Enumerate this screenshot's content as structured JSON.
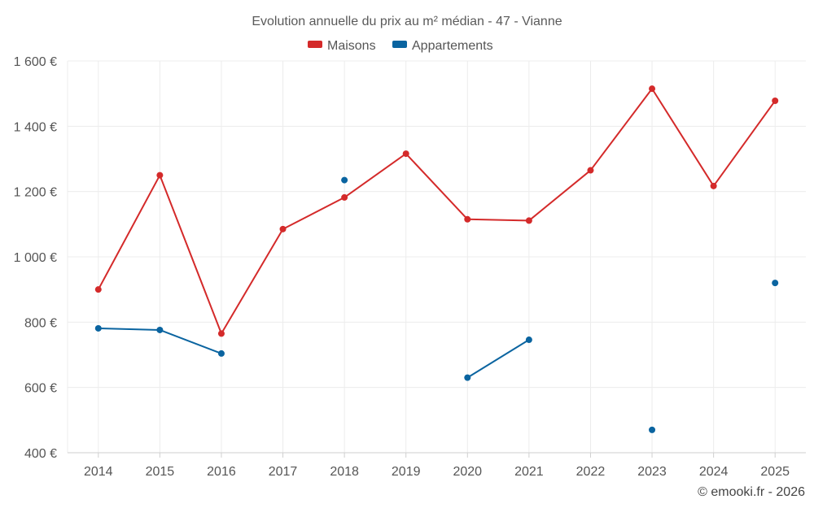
{
  "chart_data": {
    "type": "line",
    "title": "Evolution annuelle du prix au m² médian - 47 - Vianne",
    "categories": [
      "2014",
      "2015",
      "2016",
      "2017",
      "2018",
      "2019",
      "2020",
      "2021",
      "2022",
      "2023",
      "2024",
      "2025"
    ],
    "series": [
      {
        "name": "Maisons",
        "color": "#d42a2a",
        "values": [
          900,
          1250,
          765,
          1085,
          1182,
          1316,
          1115,
          1111,
          1265,
          1515,
          1217,
          1478
        ]
      },
      {
        "name": "Appartements",
        "color": "#0a64a0",
        "values": [
          781,
          776,
          704,
          null,
          1235,
          null,
          630,
          746,
          null,
          470,
          null,
          920
        ]
      }
    ],
    "ylim": [
      400,
      1600
    ],
    "yticks": [
      400,
      600,
      800,
      1000,
      1200,
      1400,
      1600
    ],
    "ytick_labels": [
      "400 €",
      "600 €",
      "800 €",
      "1 000 €",
      "1 200 €",
      "1 400 €",
      "1 600 €"
    ],
    "xlabel": "",
    "ylabel": "",
    "grid": true,
    "legend_position": "top-center"
  },
  "credit": "© emooki.fr - 2026"
}
